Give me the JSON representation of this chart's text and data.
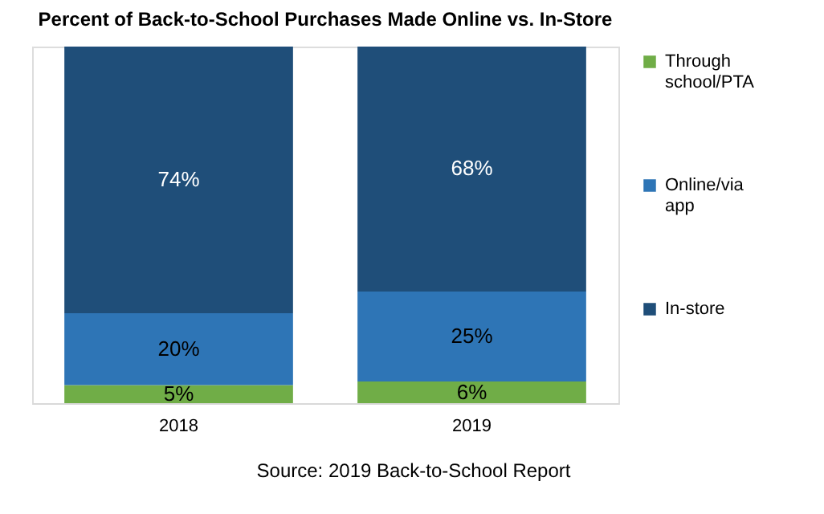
{
  "chart_data": {
    "type": "bar",
    "title": "Percent of Back-to-School Purchases Made Online vs. In-Store",
    "categories": [
      "2018",
      "2019"
    ],
    "stacked": true,
    "legend": "right",
    "grid": false,
    "tick_labels": "x",
    "series": [
      {
        "name": "Through school/PTA",
        "color": "#70ad47",
        "values": [
          5,
          6
        ],
        "value_labels": [
          "5%",
          "6%"
        ]
      },
      {
        "name": "Online/via app",
        "color": "#2e75b6",
        "values": [
          20,
          25
        ],
        "value_labels": [
          "20%",
          "25%"
        ]
      },
      {
        "name": "In-store",
        "color": "#1f4e79",
        "values": [
          74,
          68
        ],
        "value_labels": [
          "74%",
          "68%"
        ]
      }
    ],
    "annotations": [
      "Source: 2019 Back-to-School Report"
    ]
  }
}
